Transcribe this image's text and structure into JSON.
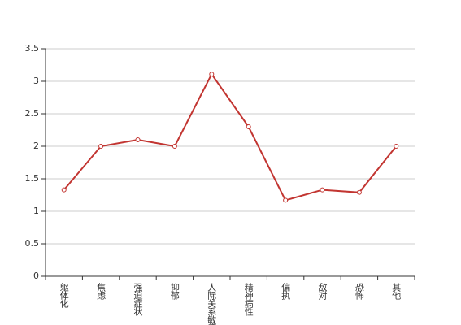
{
  "chart_data": {
    "type": "line",
    "categories": [
      "躯体化",
      "焦虑",
      "强迫症状",
      "抑郁",
      "人际关系敏感",
      "精神病性",
      "偏执",
      "敌对",
      "恐怖",
      "其他"
    ],
    "series": [
      {
        "color": "#c23531",
        "values": [
          1.33,
          2.0,
          2.1,
          2.0,
          3.11,
          2.3,
          1.17,
          1.33,
          1.29,
          2.0
        ]
      }
    ],
    "ylim": [
      0,
      3.5
    ],
    "yticks": [
      0,
      0.5,
      1,
      1.5,
      2,
      2.5,
      3,
      3.5
    ],
    "grid": true
  }
}
